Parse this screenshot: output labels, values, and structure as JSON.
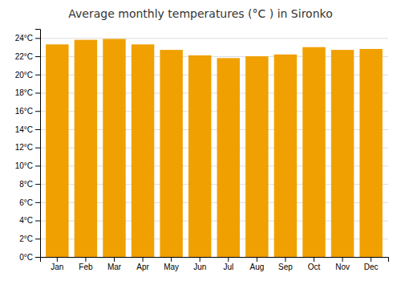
{
  "chart_data": {
    "type": "bar",
    "title": "Average monthly temperatures (°C ) in Sironko",
    "categories": [
      "Jan",
      "Feb",
      "Mar",
      "Apr",
      "May",
      "Jun",
      "Jul",
      "Aug",
      "Sep",
      "Oct",
      "Nov",
      "Dec"
    ],
    "values": [
      23.3,
      23.8,
      23.9,
      23.3,
      22.7,
      22.1,
      21.8,
      22.0,
      22.2,
      23.0,
      22.7,
      22.8
    ],
    "color": "#F0A000",
    "ylim": [
      0,
      25
    ],
    "yticks": [
      {
        "value": 0,
        "label": "0°C"
      },
      {
        "value": 2,
        "label": "2°C"
      },
      {
        "value": 4,
        "label": "4°C"
      },
      {
        "value": 6,
        "label": "6°C"
      },
      {
        "value": 8,
        "label": "8°C"
      },
      {
        "value": 10,
        "label": "10°C"
      },
      {
        "value": 12,
        "label": "12°C"
      },
      {
        "value": 14,
        "label": "14°C"
      },
      {
        "value": 16,
        "label": "16°C"
      },
      {
        "value": 18,
        "label": "18°C"
      },
      {
        "value": 20,
        "label": "20°C"
      },
      {
        "value": 22,
        "label": "22°C"
      },
      {
        "value": 24,
        "label": "24°C"
      }
    ],
    "grid": true
  }
}
